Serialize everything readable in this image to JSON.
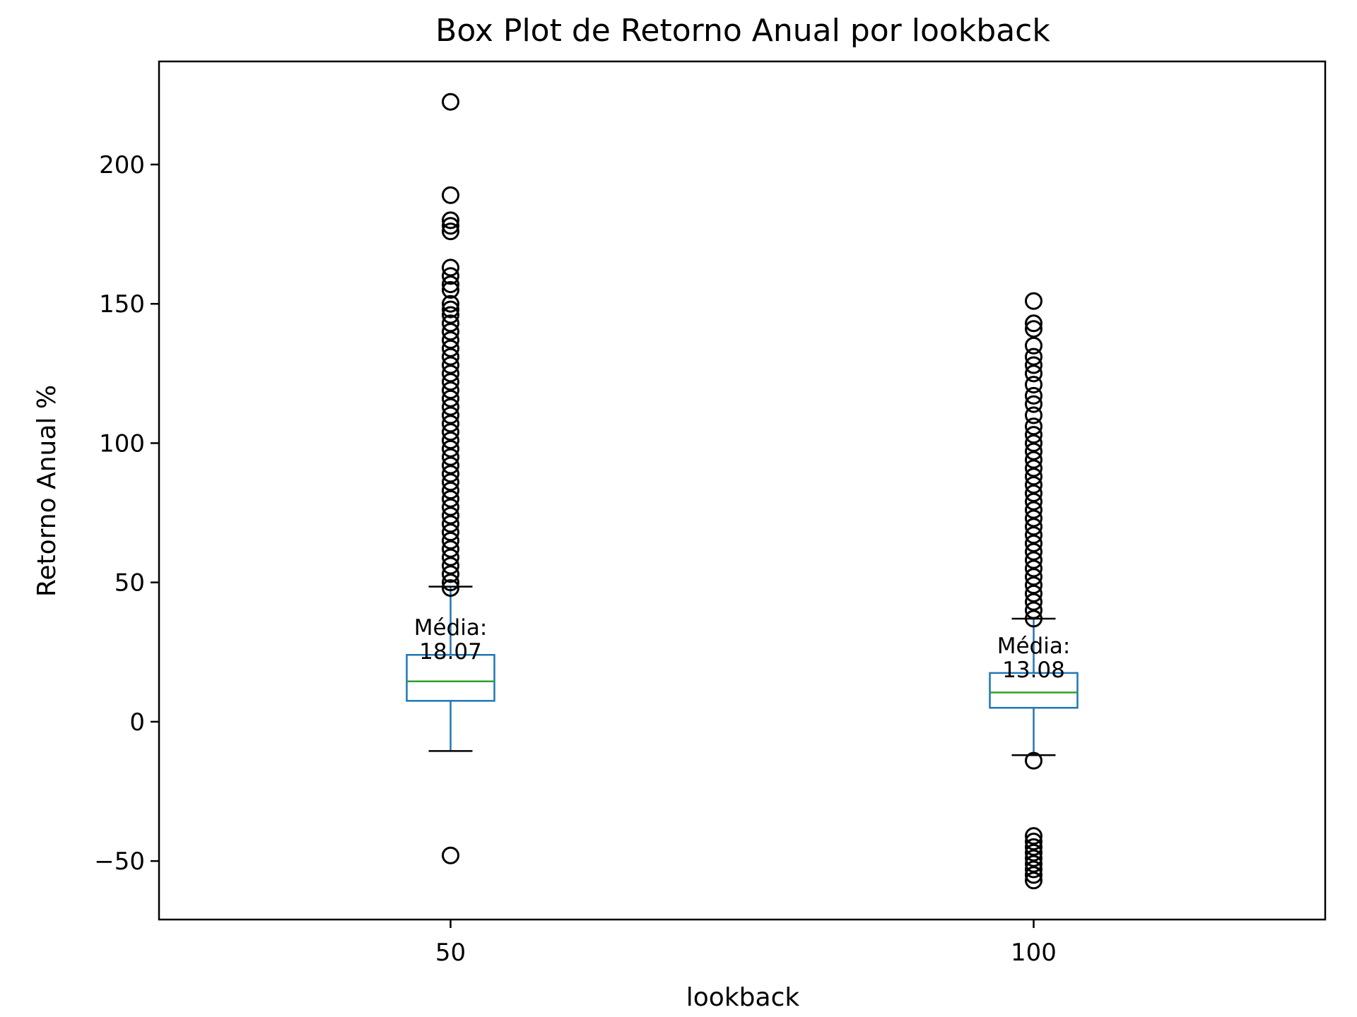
{
  "chart_data": {
    "type": "box",
    "title": "Box Plot de Retorno Anual por lookback",
    "xlabel": "lookback",
    "ylabel": "Retorno Anual %",
    "ylim": [
      -71,
      237
    ],
    "yticks": [
      -50,
      0,
      50,
      100,
      150,
      200
    ],
    "ytick_labels": [
      "−50",
      "0",
      "50",
      "100",
      "150",
      "200"
    ],
    "grid": false,
    "colors": {
      "box": "#1f77b4",
      "median": "#2ca02c",
      "whisker_cap": "#000000",
      "flier": "#000000"
    },
    "categories": [
      "50",
      "100"
    ],
    "boxes": [
      {
        "category": "50",
        "whisker_low": -10.5,
        "q1": 7.5,
        "median": 14.5,
        "q3": 24,
        "whisker_high": 48.5,
        "mean_label": "Média:",
        "mean_value": "18.07",
        "fliers": [
          222.5,
          189,
          180,
          178,
          176,
          163,
          160,
          157,
          155,
          150,
          148,
          146,
          143,
          140,
          137,
          134,
          131,
          128,
          125,
          122,
          119,
          116,
          113,
          110,
          107,
          104,
          101,
          98,
          95,
          92,
          89,
          86,
          83,
          80,
          77,
          74,
          71,
          68,
          65,
          62,
          59,
          56,
          53,
          50,
          48,
          -48
        ]
      },
      {
        "category": "100",
        "whisker_low": -12,
        "q1": 5,
        "median": 10.5,
        "q3": 17.5,
        "whisker_high": 37,
        "mean_label": "Média:",
        "mean_value": "13.08",
        "fliers": [
          151,
          143,
          141,
          135,
          131,
          128,
          125,
          121,
          117,
          114,
          110,
          106,
          103,
          100,
          97,
          94,
          91,
          88,
          85,
          82,
          79,
          76,
          73,
          70,
          67,
          64,
          61,
          58,
          55,
          52,
          49,
          46,
          43,
          40,
          37,
          -14,
          -41,
          -43,
          -45,
          -47,
          -49,
          -51,
          -53,
          -55,
          -57
        ]
      }
    ]
  }
}
